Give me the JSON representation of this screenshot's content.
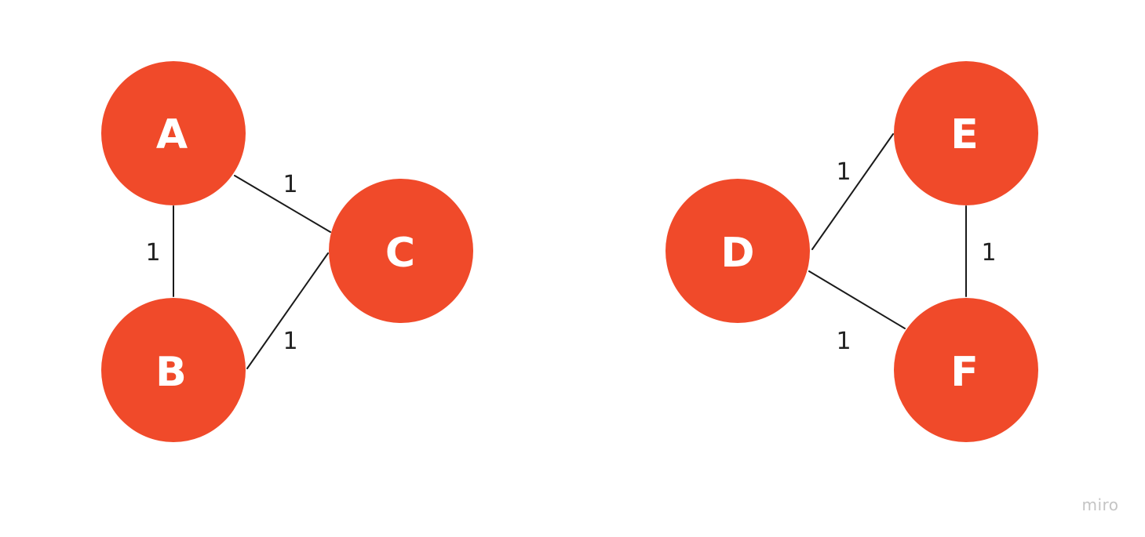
{
  "colors": {
    "node_fill": "#F04A2A",
    "node_text": "#FFFFFF",
    "edge": "#1A1A1A",
    "background": "#FFFFFF",
    "watermark": "#C4C4C4"
  },
  "graph": {
    "nodes": [
      {
        "id": "A",
        "label": "A"
      },
      {
        "id": "B",
        "label": "B"
      },
      {
        "id": "C",
        "label": "C"
      },
      {
        "id": "D",
        "label": "D"
      },
      {
        "id": "E",
        "label": "E"
      },
      {
        "id": "F",
        "label": "F"
      }
    ],
    "edges": [
      {
        "from": "A",
        "to": "B",
        "weight": "1"
      },
      {
        "from": "A",
        "to": "C",
        "weight": "1"
      },
      {
        "from": "B",
        "to": "C",
        "weight": "1"
      },
      {
        "from": "D",
        "to": "E",
        "weight": "1"
      },
      {
        "from": "D",
        "to": "F",
        "weight": "1"
      },
      {
        "from": "E",
        "to": "F",
        "weight": "1"
      }
    ]
  },
  "watermark": {
    "text": "miro"
  }
}
